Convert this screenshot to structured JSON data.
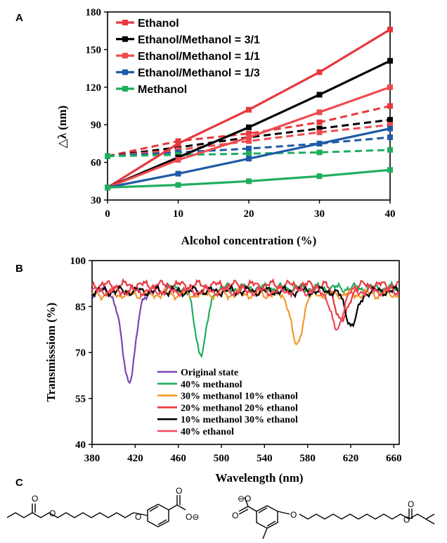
{
  "panels": {
    "a": "A",
    "b": "B",
    "c": "C"
  },
  "colors": {
    "ethanol": "#e8383d",
    "mix31": "#000000",
    "mix11": "#ef4b4f",
    "mix13": "#1f5aa6",
    "methanol": "#1fae5e",
    "original": "#7a45b6",
    "b_methanol40": "#1fae5e",
    "b_m30e10": "#f39a2c",
    "b_m20e20": "#e8383d",
    "b_m10e30": "#000000",
    "b_ethanol40": "#f2455a"
  },
  "chart_data": [
    {
      "type": "line",
      "title": "",
      "xlabel": "Alcohol concentration (%)",
      "ylabel": "△λ (nm)",
      "x": [
        0,
        10,
        20,
        30,
        40
      ],
      "xticks": [
        "0",
        "10",
        "20",
        "30",
        "40"
      ],
      "yticks": [
        "30",
        "60",
        "90",
        "120",
        "150",
        "180"
      ],
      "xlim": [
        0,
        40
      ],
      "ylim": [
        30,
        180
      ],
      "legend_position": "top-left",
      "series": [
        {
          "name": "Ethanol",
          "color_key": "ethanol",
          "solid": [
            40,
            75,
            102,
            132,
            166
          ],
          "dashed": [
            65,
            77,
            83,
            92,
            105
          ]
        },
        {
          "name": "Ethanol/Methanol = 3/1",
          "color_key": "mix31",
          "solid": [
            40,
            64,
            88,
            114,
            141
          ],
          "dashed": [
            65,
            72,
            80,
            87,
            94
          ]
        },
        {
          "name": "Ethanol/Methanol = 1/1",
          "color_key": "mix11",
          "solid": [
            40,
            62,
            80,
            100,
            120
          ],
          "dashed": [
            65,
            70,
            77,
            84,
            90
          ]
        },
        {
          "name": "Ethanol/Methanol = 1/3",
          "color_key": "mix13",
          "solid": [
            40,
            51,
            63,
            75,
            87
          ],
          "dashed": [
            65,
            68,
            71,
            75,
            80
          ]
        },
        {
          "name": "Methanol",
          "color_key": "methanol",
          "solid": [
            40,
            42,
            45,
            49,
            54
          ],
          "dashed": [
            65,
            66,
            67,
            68,
            70
          ]
        }
      ]
    },
    {
      "type": "line",
      "title": "",
      "xlabel": "Wavelength (nm)",
      "ylabel": "Transmisssiom (%)",
      "xlim": [
        380,
        665
      ],
      "ylim": [
        40,
        100
      ],
      "xticks": [
        "380",
        "420",
        "460",
        "500",
        "540",
        "580",
        "620",
        "660"
      ],
      "yticks": [
        "40",
        "55",
        "70",
        "85",
        "100"
      ],
      "legend_position": "bottom-left",
      "series": [
        {
          "name": "Original state",
          "color_key": "original",
          "baseline": 90,
          "dip_center": 414,
          "dip_min": 61,
          "dip_width": 9,
          "x_range": [
            380,
            442
          ]
        },
        {
          "name": "40% methanol",
          "color_key": "b_methanol40",
          "baseline": 91,
          "dip_center": 481,
          "dip_min": 70,
          "dip_width": 8,
          "x_range": [
            448,
            665
          ]
        },
        {
          "name": "30% methanol 10% ethanol",
          "color_key": "b_m30e10",
          "baseline": 89,
          "dip_center": 570,
          "dip_min": 72,
          "dip_width": 7,
          "x_range": [
            380,
            665
          ]
        },
        {
          "name": "20% methanol 20% ethanol",
          "color_key": "b_m20e20",
          "baseline": 92,
          "dip_center": 612,
          "dip_min": 80,
          "dip_width": 8,
          "x_range": [
            380,
            665
          ]
        },
        {
          "name": "10% methanol 30% ethanol",
          "color_key": "b_m10e30",
          "baseline": 90,
          "dip_center": 621,
          "dip_min": 79,
          "dip_width": 8,
          "x_range": [
            380,
            665
          ]
        },
        {
          "name": "40% ethanol",
          "color_key": "b_ethanol40",
          "baseline": 90,
          "dip_center": 607,
          "dip_min": 77,
          "dip_width": 7,
          "x_range": [
            380,
            665
          ]
        }
      ]
    }
  ]
}
